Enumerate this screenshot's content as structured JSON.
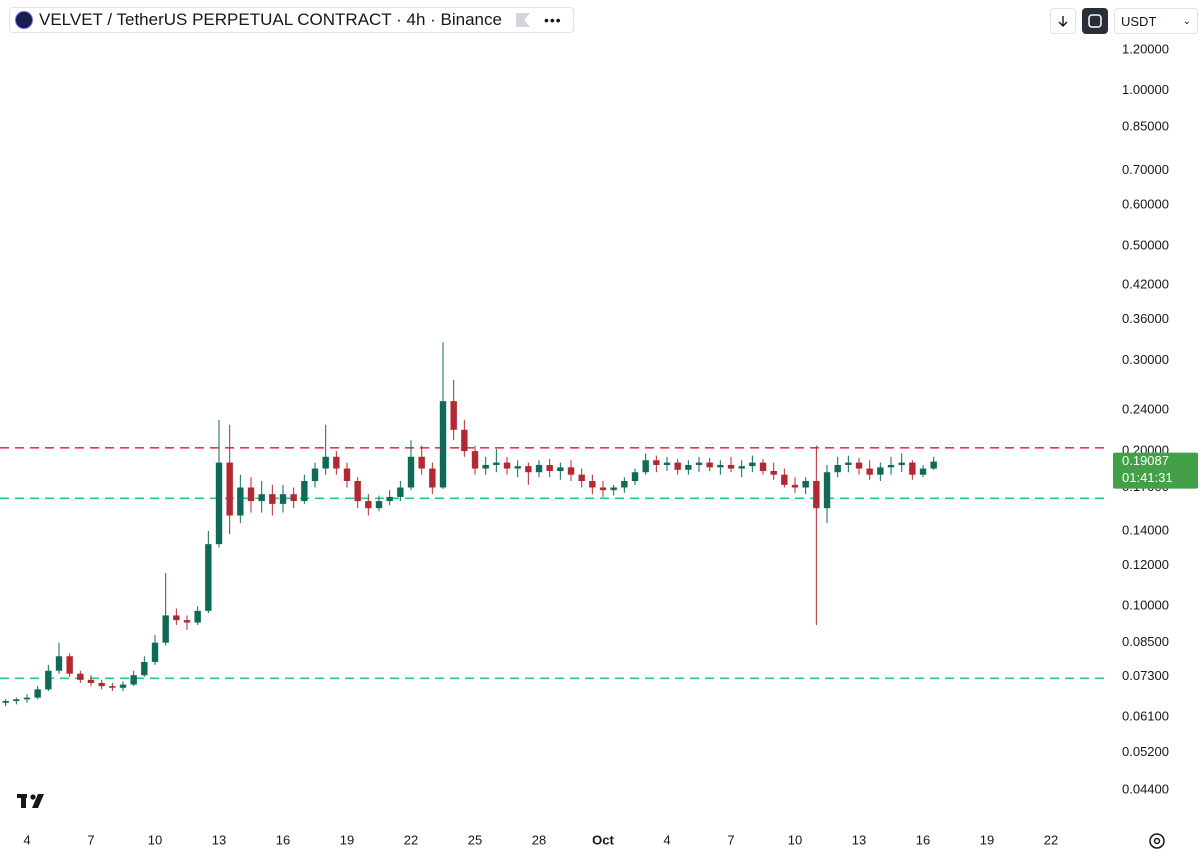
{
  "header": {
    "title": "VELVET / TetherUS PERPETUAL CONTRACT · 4h · Binance",
    "currency": "USDT"
  },
  "chart_data": {
    "type": "candlestick",
    "log_scale": true,
    "grid": false,
    "up_color": "#0f6b57",
    "down_color": "#b22833",
    "x": [
      -1.0,
      -0.5,
      0.0,
      0.5,
      1.0,
      1.5,
      2.0,
      2.5,
      3.0,
      3.5,
      4.0,
      4.5,
      5.0,
      5.5,
      6.0,
      6.5,
      7.0,
      7.5,
      8.0,
      8.5,
      9.0,
      9.5,
      10.0,
      10.5,
      11.0,
      11.5,
      12.0,
      12.5,
      13.0,
      13.5,
      14.0,
      14.5,
      15.0,
      15.5,
      16.0,
      16.5,
      17.0,
      17.5,
      18.0,
      18.5,
      19.0,
      19.5,
      20.0,
      20.5,
      21.0,
      21.5,
      22.0,
      22.5,
      23.0,
      23.5,
      24.0,
      24.5,
      25.0,
      25.5,
      26.0,
      26.5,
      27.0,
      27.5,
      28.0,
      28.5,
      29.0,
      29.5,
      30.0,
      30.5,
      31.0,
      31.5,
      32.0,
      32.5,
      33.0,
      33.5,
      34.0,
      34.5,
      35.0,
      35.5,
      36.0,
      36.5,
      37.0,
      37.5,
      38.0,
      38.5,
      39.0,
      39.5,
      40.0,
      40.5,
      41.0,
      41.5,
      42.0,
      42.5
    ],
    "open": [
      0.065,
      0.0655,
      0.066,
      0.0665,
      0.069,
      0.075,
      0.08,
      0.074,
      0.072,
      0.071,
      0.07,
      0.0695,
      0.0705,
      0.0735,
      0.078,
      0.085,
      0.096,
      0.094,
      0.093,
      0.098,
      0.132,
      0.19,
      0.15,
      0.17,
      0.16,
      0.165,
      0.158,
      0.165,
      0.16,
      0.175,
      0.185,
      0.195,
      0.185,
      0.175,
      0.16,
      0.155,
      0.16,
      0.163,
      0.17,
      0.195,
      0.185,
      0.17,
      0.25,
      0.22,
      0.2,
      0.185,
      0.188,
      0.19,
      0.185,
      0.187,
      0.182,
      0.188,
      0.183,
      0.186,
      0.18,
      0.175,
      0.17,
      0.168,
      0.17,
      0.175,
      0.182,
      0.192,
      0.188,
      0.19,
      0.184,
      0.188,
      0.19,
      0.186,
      0.188,
      0.185,
      0.187,
      0.19,
      0.183,
      0.18,
      0.172,
      0.17,
      0.175,
      0.155,
      0.182,
      0.188,
      0.19,
      0.185,
      0.18,
      0.186,
      0.188,
      0.19,
      0.18,
      0.185
    ],
    "high": [
      0.066,
      0.0665,
      0.0675,
      0.07,
      0.077,
      0.085,
      0.081,
      0.075,
      0.0735,
      0.072,
      0.071,
      0.0715,
      0.075,
      0.08,
      0.088,
      0.116,
      0.099,
      0.096,
      0.1,
      0.14,
      0.23,
      0.225,
      0.18,
      0.178,
      0.175,
      0.172,
      0.172,
      0.17,
      0.18,
      0.19,
      0.225,
      0.2,
      0.19,
      0.178,
      0.165,
      0.164,
      0.168,
      0.175,
      0.21,
      0.205,
      0.19,
      0.325,
      0.275,
      0.23,
      0.205,
      0.195,
      0.202,
      0.195,
      0.192,
      0.19,
      0.192,
      0.193,
      0.19,
      0.192,
      0.185,
      0.18,
      0.175,
      0.172,
      0.178,
      0.185,
      0.198,
      0.196,
      0.195,
      0.193,
      0.192,
      0.195,
      0.194,
      0.192,
      0.195,
      0.192,
      0.196,
      0.193,
      0.19,
      0.185,
      0.178,
      0.178,
      0.205,
      0.188,
      0.195,
      0.196,
      0.194,
      0.192,
      0.19,
      0.195,
      0.198,
      0.192,
      0.188,
      0.195
    ],
    "low": [
      0.064,
      0.0645,
      0.065,
      0.066,
      0.0685,
      0.074,
      0.073,
      0.071,
      0.07,
      0.069,
      0.0685,
      0.0685,
      0.07,
      0.073,
      0.077,
      0.084,
      0.092,
      0.09,
      0.092,
      0.097,
      0.13,
      0.138,
      0.145,
      0.152,
      0.152,
      0.15,
      0.152,
      0.155,
      0.158,
      0.17,
      0.18,
      0.18,
      0.17,
      0.155,
      0.15,
      0.153,
      0.157,
      0.16,
      0.168,
      0.18,
      0.165,
      0.169,
      0.21,
      0.195,
      0.18,
      0.18,
      0.182,
      0.18,
      0.178,
      0.172,
      0.178,
      0.178,
      0.176,
      0.175,
      0.17,
      0.165,
      0.163,
      0.164,
      0.166,
      0.172,
      0.18,
      0.182,
      0.183,
      0.18,
      0.18,
      0.182,
      0.183,
      0.18,
      0.182,
      0.178,
      0.182,
      0.18,
      0.176,
      0.17,
      0.166,
      0.165,
      0.092,
      0.145,
      0.178,
      0.182,
      0.18,
      0.176,
      0.175,
      0.18,
      0.182,
      0.176,
      0.178,
      0.184
    ],
    "close": [
      0.0655,
      0.066,
      0.0665,
      0.069,
      0.075,
      0.08,
      0.074,
      0.072,
      0.071,
      0.07,
      0.0695,
      0.0705,
      0.0735,
      0.078,
      0.085,
      0.096,
      0.094,
      0.093,
      0.098,
      0.132,
      0.19,
      0.15,
      0.17,
      0.16,
      0.165,
      0.158,
      0.165,
      0.16,
      0.175,
      0.185,
      0.195,
      0.185,
      0.175,
      0.16,
      0.155,
      0.16,
      0.163,
      0.17,
      0.195,
      0.185,
      0.17,
      0.25,
      0.22,
      0.2,
      0.185,
      0.188,
      0.19,
      0.185,
      0.187,
      0.182,
      0.188,
      0.183,
      0.186,
      0.18,
      0.175,
      0.17,
      0.168,
      0.17,
      0.175,
      0.182,
      0.192,
      0.188,
      0.19,
      0.184,
      0.188,
      0.19,
      0.186,
      0.188,
      0.185,
      0.187,
      0.19,
      0.183,
      0.18,
      0.172,
      0.17,
      0.175,
      0.155,
      0.182,
      0.188,
      0.19,
      0.185,
      0.18,
      0.186,
      0.188,
      0.19,
      0.18,
      0.185,
      0.19087
    ],
    "xlim": [
      -1.2656,
      50.53
    ],
    "xticks": [
      {
        "value": 0,
        "label": "4"
      },
      {
        "value": 3,
        "label": "7"
      },
      {
        "value": 6,
        "label": "10"
      },
      {
        "value": 9,
        "label": "13"
      },
      {
        "value": 12,
        "label": "16"
      },
      {
        "value": 15,
        "label": "19"
      },
      {
        "value": 18,
        "label": "22"
      },
      {
        "value": 21,
        "label": "25"
      },
      {
        "value": 24,
        "label": "28"
      },
      {
        "value": 27,
        "label": "Oct"
      },
      {
        "value": 30,
        "label": "4"
      },
      {
        "value": 33,
        "label": "7"
      },
      {
        "value": 36,
        "label": "10"
      },
      {
        "value": 39,
        "label": "13"
      },
      {
        "value": 42,
        "label": "16"
      },
      {
        "value": 45,
        "label": "19"
      },
      {
        "value": 48,
        "label": "22"
      }
    ],
    "ylim": [
      0.0385,
      1.5
    ],
    "yticks": [
      {
        "value": 1.2,
        "label": "1.20000"
      },
      {
        "value": 1.0,
        "label": "1.00000"
      },
      {
        "value": 0.85,
        "label": "0.85000"
      },
      {
        "value": 0.7,
        "label": "0.70000"
      },
      {
        "value": 0.6,
        "label": "0.60000"
      },
      {
        "value": 0.5,
        "label": "0.50000"
      },
      {
        "value": 0.42,
        "label": "0.42000"
      },
      {
        "value": 0.36,
        "label": "0.36000"
      },
      {
        "value": 0.3,
        "label": "0.30000"
      },
      {
        "value": 0.24,
        "label": "0.24000"
      },
      {
        "value": 0.2,
        "label": "0.20000"
      },
      {
        "value": 0.17,
        "label": "0.17000"
      },
      {
        "value": 0.14,
        "label": "0.14000"
      },
      {
        "value": 0.12,
        "label": "0.12000"
      },
      {
        "value": 0.1,
        "label": "0.10000"
      },
      {
        "value": 0.085,
        "label": "0.08500"
      },
      {
        "value": 0.073,
        "label": "0.07300"
      },
      {
        "value": 0.061,
        "label": "0.06100"
      },
      {
        "value": 0.052,
        "label": "0.05200"
      },
      {
        "value": 0.044,
        "label": "0.04400"
      }
    ],
    "hlines": [
      {
        "value": 0.203,
        "color": "#f23645"
      },
      {
        "value": 0.162,
        "color": "#22c98a"
      },
      {
        "value": 0.0725,
        "color": "#22c98a"
      }
    ],
    "last_price": {
      "value": 0.19087,
      "countdown": "01:41:31",
      "color": "#43a047"
    }
  }
}
